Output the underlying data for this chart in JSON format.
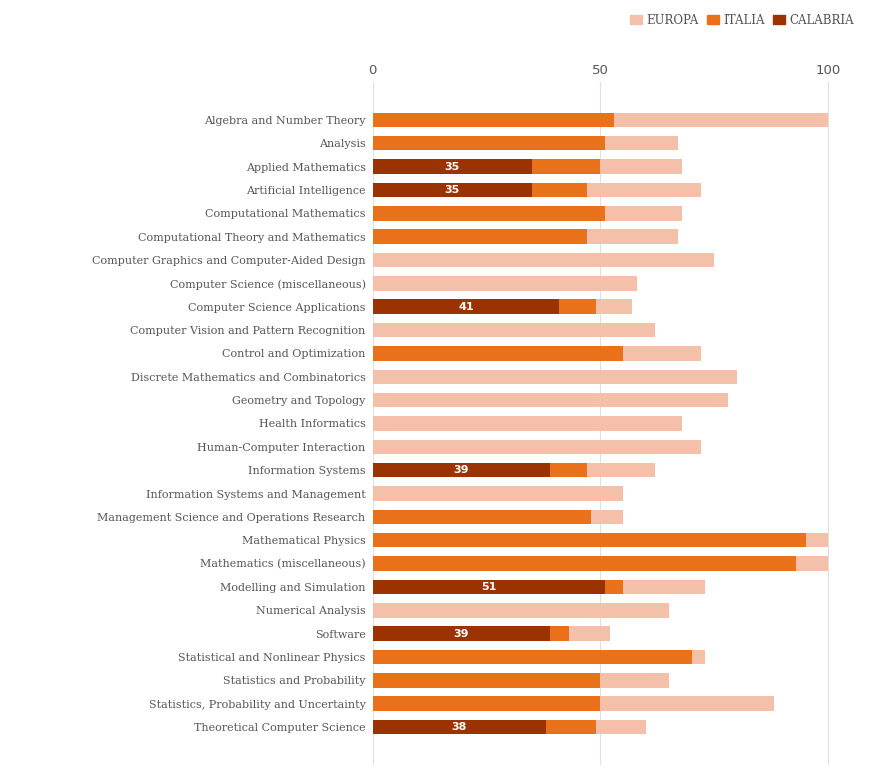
{
  "categories": [
    "Algebra and Number Theory",
    "Analysis",
    "Applied Mathematics",
    "Artificial Intelligence",
    "Computational Mathematics",
    "Computational Theory and Mathematics",
    "Computer Graphics and Computer-Aided Design",
    "Computer Science (miscellaneous)",
    "Computer Science Applications",
    "Computer Vision and Pattern Recognition",
    "Control and Optimization",
    "Discrete Mathematics and Combinatorics",
    "Geometry and Topology",
    "Health Informatics",
    "Human-Computer Interaction",
    "Information Systems",
    "Information Systems and Management",
    "Management Science and Operations Research",
    "Mathematical Physics",
    "Mathematics (miscellaneous)",
    "Modelling and Simulation",
    "Numerical Analysis",
    "Software",
    "Statistical and Nonlinear Physics",
    "Statistics and Probability",
    "Statistics, Probability and Uncertainty",
    "Theoretical Computer Science"
  ],
  "europa_values": [
    100,
    67,
    68,
    72,
    68,
    67,
    75,
    58,
    57,
    62,
    72,
    80,
    78,
    68,
    72,
    62,
    55,
    55,
    100,
    100,
    73,
    65,
    52,
    73,
    65,
    88,
    60
  ],
  "italia_values": [
    53,
    51,
    50,
    47,
    51,
    47,
    0,
    0,
    49,
    0,
    55,
    0,
    0,
    0,
    0,
    47,
    0,
    48,
    95,
    93,
    55,
    0,
    43,
    70,
    50,
    50,
    49
  ],
  "calabria_values": [
    0,
    0,
    35,
    35,
    0,
    0,
    0,
    0,
    41,
    0,
    0,
    0,
    0,
    0,
    0,
    39,
    0,
    0,
    0,
    0,
    51,
    0,
    39,
    0,
    0,
    0,
    38
  ],
  "calabria_labels": [
    null,
    null,
    35,
    35,
    null,
    null,
    null,
    null,
    41,
    null,
    null,
    null,
    null,
    null,
    null,
    39,
    null,
    null,
    null,
    null,
    51,
    null,
    39,
    null,
    null,
    null,
    38
  ],
  "color_europa": "#f5c0aa",
  "color_italia": "#e8711a",
  "color_calabria": "#9b3300",
  "bar_height": 0.62,
  "xlim": [
    0,
    108
  ],
  "xticks": [
    0,
    50,
    100
  ],
  "legend_labels": [
    "Europa",
    "Italia",
    "Calabria"
  ],
  "background_color": "#ffffff",
  "text_color": "#555555",
  "figsize": [
    8.87,
    7.77
  ],
  "dpi": 100
}
